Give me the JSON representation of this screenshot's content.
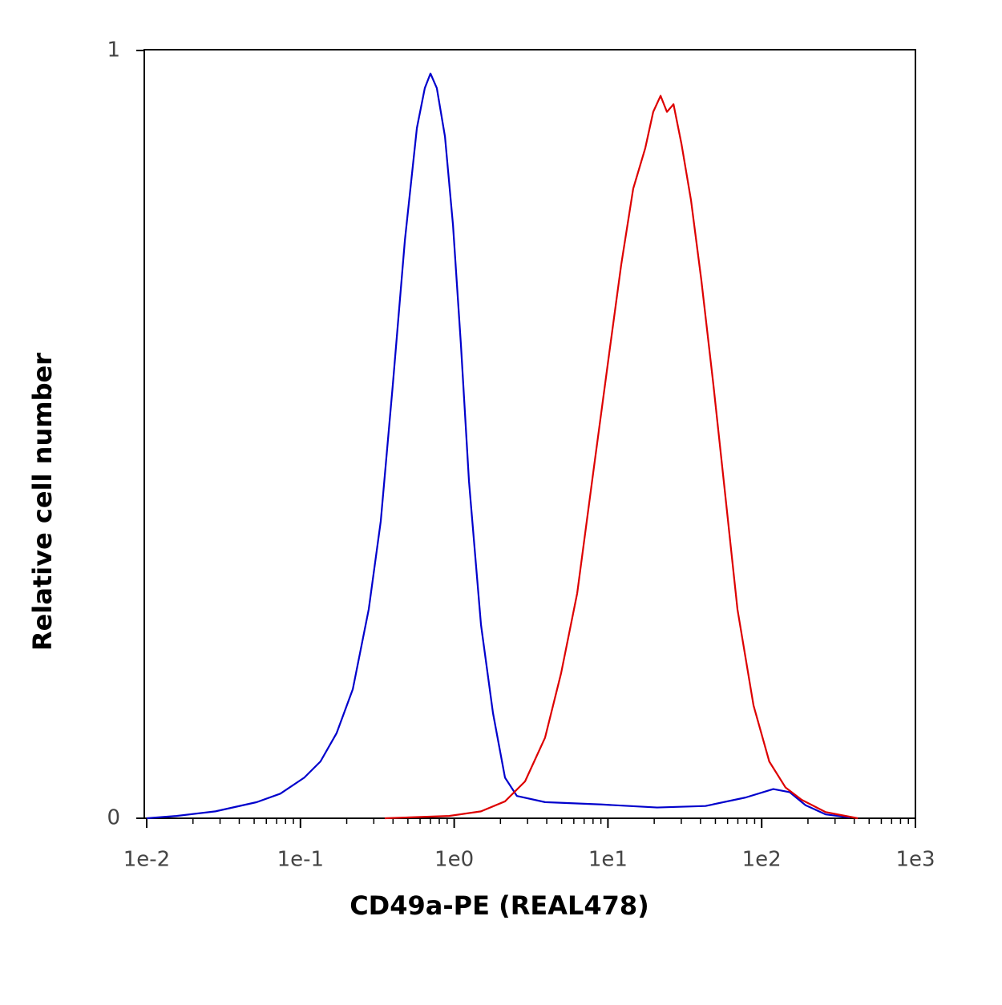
{
  "chart_data": {
    "type": "line",
    "xlabel": "CD49a-PE (REAL478)",
    "ylabel": "Relative cell number",
    "xscale": "log",
    "xlim": [
      0.01,
      1000
    ],
    "ylim": [
      0,
      1
    ],
    "xticks": [
      {
        "value": 0.01,
        "label": "1e-2"
      },
      {
        "value": 0.1,
        "label": "1e-1"
      },
      {
        "value": 1,
        "label": "1e0"
      },
      {
        "value": 10,
        "label": "1e1"
      },
      {
        "value": 100,
        "label": "1e2"
      },
      {
        "value": 1000,
        "label": "1e3"
      }
    ],
    "xminorticks": [
      0.02,
      0.03,
      0.04,
      0.05,
      0.06,
      0.07,
      0.08,
      0.09,
      0.2,
      0.3,
      0.4,
      0.5,
      0.6,
      0.7,
      0.8,
      0.9,
      2,
      3,
      4,
      5,
      6,
      7,
      8,
      9,
      20,
      30,
      40,
      50,
      60,
      70,
      80,
      90,
      200,
      300,
      400,
      500,
      600,
      700,
      800,
      900
    ],
    "yticks": [
      0,
      1
    ],
    "series": [
      {
        "color": "#0000cc",
        "x": [
          0.01,
          0.0156,
          0.028,
          0.052,
          0.074,
          0.106,
          0.135,
          0.172,
          0.219,
          0.278,
          0.333,
          0.399,
          0.478,
          0.572,
          0.644,
          0.701,
          0.771,
          0.871,
          0.982,
          1.106,
          1.248,
          1.494,
          1.788,
          2.14,
          2.56,
          3.9,
          9.04,
          20.9,
          43.1,
          78.5,
          119,
          152,
          193,
          261,
          374
        ],
        "values": [
          0.0,
          0.003,
          0.009,
          0.021,
          0.032,
          0.053,
          0.074,
          0.111,
          0.168,
          0.272,
          0.387,
          0.565,
          0.753,
          0.899,
          0.951,
          0.97,
          0.951,
          0.888,
          0.773,
          0.617,
          0.439,
          0.252,
          0.137,
          0.053,
          0.029,
          0.021,
          0.018,
          0.014,
          0.016,
          0.027,
          0.038,
          0.034,
          0.017,
          0.005,
          0.001
        ]
      },
      {
        "color": "#dd0000",
        "x": [
          0.353,
          0.925,
          1.494,
          2.14,
          2.89,
          3.9,
          4.96,
          6.31,
          8.02,
          10.2,
          12.2,
          14.6,
          17.5,
          19.7,
          22.0,
          24.2,
          26.7,
          30.1,
          34.7,
          40.5,
          48.5,
          58.1,
          69.6,
          88.5,
          112,
          143,
          182,
          261,
          422
        ],
        "values": [
          0.0,
          0.003,
          0.009,
          0.022,
          0.048,
          0.105,
          0.189,
          0.293,
          0.45,
          0.606,
          0.721,
          0.82,
          0.873,
          0.92,
          0.941,
          0.92,
          0.93,
          0.878,
          0.805,
          0.701,
          0.565,
          0.419,
          0.272,
          0.147,
          0.074,
          0.04,
          0.024,
          0.008,
          0.0
        ]
      }
    ]
  }
}
